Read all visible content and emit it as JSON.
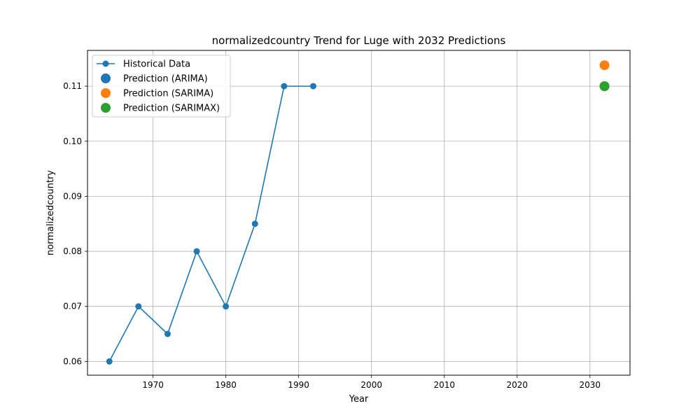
{
  "chart_data": {
    "type": "line",
    "title": "normalizedcountry Trend for Luge with 2032 Predictions",
    "xlabel": "Year",
    "ylabel": "normalizedcountry",
    "xlim": [
      1961,
      2035.5
    ],
    "ylim": [
      0.0575,
      0.1165
    ],
    "xticks": [
      1970,
      1980,
      1990,
      2000,
      2010,
      2020,
      2030
    ],
    "yticks": [
      0.06,
      0.07,
      0.08,
      0.09,
      0.1,
      0.11
    ],
    "ytick_labels": [
      "0.06",
      "0.07",
      "0.08",
      "0.09",
      "0.10",
      "0.11"
    ],
    "grid": true,
    "legend_position": "top-left",
    "series": [
      {
        "name": "Historical Data",
        "kind": "line-marker",
        "color": "#1f77b4",
        "x": [
          1964,
          1968,
          1972,
          1976,
          1980,
          1984,
          1988,
          1992
        ],
        "y": [
          0.06,
          0.07,
          0.065,
          0.08,
          0.07,
          0.085,
          0.11,
          0.11
        ]
      },
      {
        "name": "Prediction (ARIMA)",
        "kind": "point",
        "color": "#1f77b4",
        "x": [
          2032
        ],
        "y": [
          0.11
        ]
      },
      {
        "name": "Prediction (SARIMA)",
        "kind": "point",
        "color": "#ff7f0e",
        "x": [
          2032
        ],
        "y": [
          0.1138
        ]
      },
      {
        "name": "Prediction (SARIMAX)",
        "kind": "point",
        "color": "#2ca02c",
        "x": [
          2032
        ],
        "y": [
          0.11
        ]
      }
    ]
  }
}
